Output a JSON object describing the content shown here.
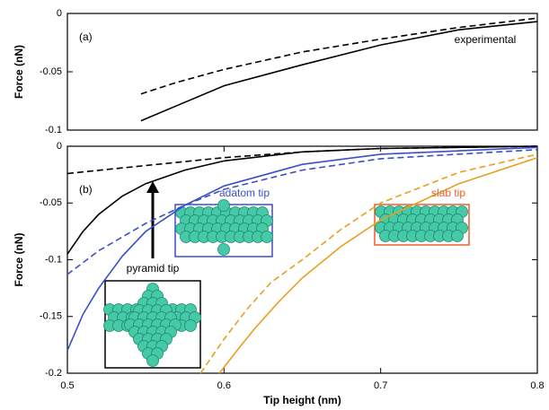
{
  "chart_data": [
    {
      "type": "line",
      "panel_label": "(a)",
      "ylabel": "Force (nN)",
      "annotations": [
        "experimental"
      ],
      "xlim": [
        0.5,
        0.8
      ],
      "ylim": [
        -0.1,
        0
      ],
      "yticks": [
        0,
        -0.05,
        -0.1
      ],
      "series": [
        {
          "color": "#000000",
          "dash": false,
          "x": [
            0.547,
            0.57,
            0.6,
            0.65,
            0.7,
            0.75,
            0.8
          ],
          "values": [
            -0.092,
            -0.079,
            -0.062,
            -0.044,
            -0.027,
            -0.014,
            -0.007
          ]
        },
        {
          "color": "#000000",
          "dash": true,
          "x": [
            0.547,
            0.57,
            0.6,
            0.65,
            0.7,
            0.75,
            0.8
          ],
          "values": [
            -0.069,
            -0.059,
            -0.048,
            -0.033,
            -0.022,
            -0.012,
            -0.004
          ]
        }
      ]
    },
    {
      "type": "line",
      "panel_label": "(b)",
      "ylabel": "Force (nN)",
      "xlabel": "Tip height (nm)",
      "annotations": [
        "adatom tip",
        "slab tip",
        "pyramid tip"
      ],
      "xlim": [
        0.5,
        0.8
      ],
      "ylim": [
        -0.2,
        0
      ],
      "yticks": [
        0,
        -0.05,
        -0.1,
        -0.15,
        -0.2
      ],
      "xticks": [
        0.5,
        0.6,
        0.7,
        0.8
      ],
      "series": [
        {
          "color": "#000000",
          "dash": false,
          "x": [
            0.5,
            0.51,
            0.52,
            0.535,
            0.55,
            0.575,
            0.6,
            0.65,
            0.7,
            0.8
          ],
          "values": [
            -0.095,
            -0.075,
            -0.06,
            -0.044,
            -0.033,
            -0.021,
            -0.013,
            -0.005,
            -0.002,
            0
          ]
        },
        {
          "color": "#000000",
          "dash": true,
          "x": [
            0.5,
            0.55,
            0.6,
            0.65,
            0.7,
            0.8
          ],
          "values": [
            -0.024,
            -0.017,
            -0.01,
            -0.005,
            -0.002,
            0
          ]
        },
        {
          "color": "#3a4fc8",
          "dash": false,
          "x": [
            0.5,
            0.51,
            0.52,
            0.535,
            0.55,
            0.575,
            0.6,
            0.65,
            0.7,
            0.8
          ],
          "values": [
            -0.18,
            -0.148,
            -0.125,
            -0.097,
            -0.075,
            -0.052,
            -0.035,
            -0.016,
            -0.007,
            -0.001
          ]
        },
        {
          "color": "#3a4fc8",
          "dash": true,
          "x": [
            0.5,
            0.52,
            0.55,
            0.575,
            0.6,
            0.65,
            0.7,
            0.8
          ],
          "values": [
            -0.113,
            -0.092,
            -0.068,
            -0.052,
            -0.038,
            -0.021,
            -0.011,
            -0.003
          ]
        },
        {
          "color": "#e8a020",
          "dash": false,
          "x": [
            0.597,
            0.61,
            0.62,
            0.635,
            0.65,
            0.675,
            0.7,
            0.75,
            0.8
          ],
          "values": [
            -0.2,
            -0.177,
            -0.16,
            -0.137,
            -0.116,
            -0.088,
            -0.065,
            -0.033,
            -0.01
          ]
        },
        {
          "color": "#e8a020",
          "dash": true,
          "x": [
            0.585,
            0.6,
            0.615,
            0.63,
            0.65,
            0.675,
            0.7,
            0.75,
            0.8
          ],
          "values": [
            -0.2,
            -0.17,
            -0.143,
            -0.12,
            -0.1,
            -0.073,
            -0.05,
            -0.023,
            -0.007
          ]
        }
      ]
    }
  ]
}
